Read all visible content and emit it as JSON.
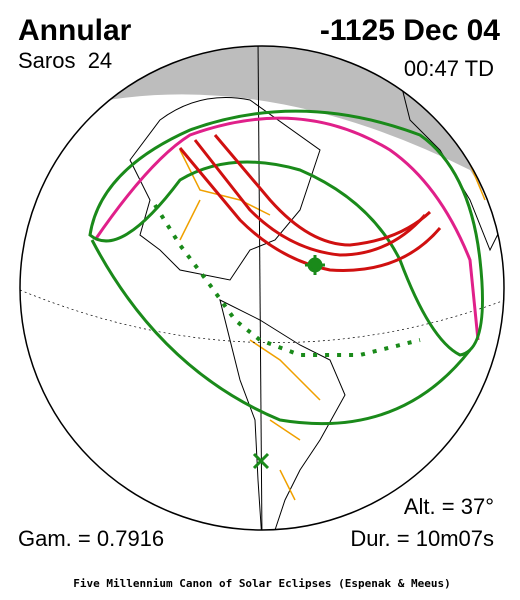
{
  "header": {
    "title": "Annular",
    "date": "-1125 Dec 04",
    "saros": "Saros  24",
    "time": "00:47 TD"
  },
  "footer": {
    "gamma": "Gam. = 0.7916",
    "altitude": "Alt. = 37°",
    "duration": "Dur. = 10m07s",
    "credit": "Five Millennium Canon of Solar Eclipses (Espenak & Meeus)"
  }
}
